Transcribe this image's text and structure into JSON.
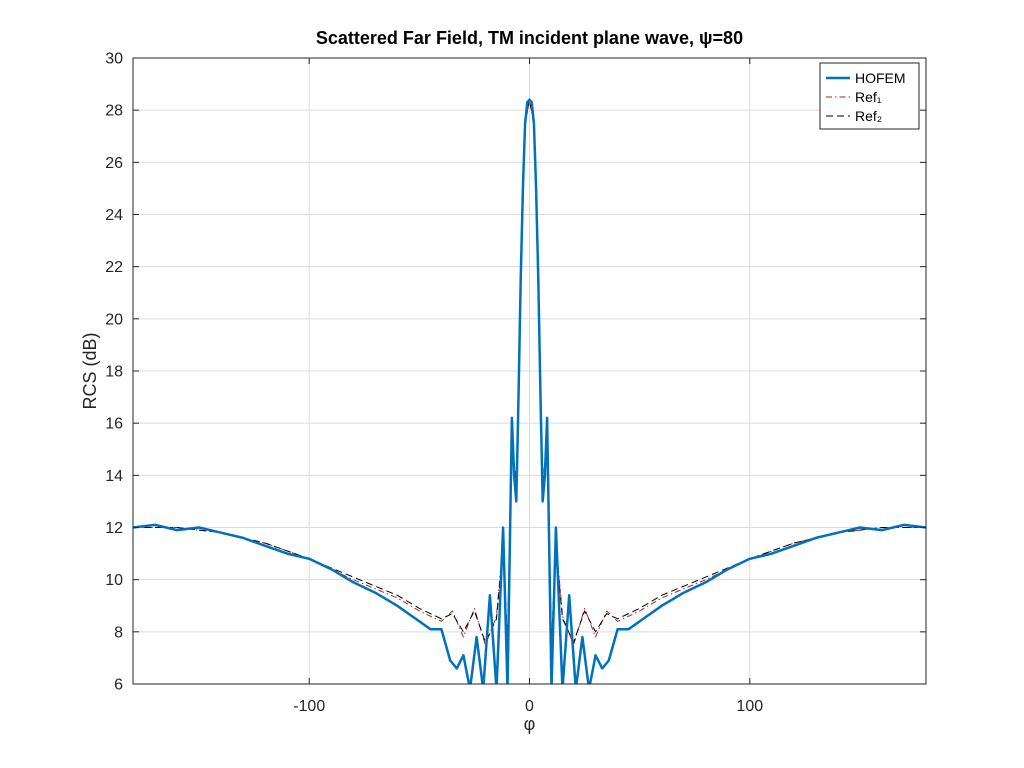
{
  "chart_data": {
    "type": "line",
    "title": "Scattered Far Field, TM incident plane wave, ψ=80",
    "xlabel": "φ",
    "ylabel": "RCS (dB)",
    "xlim": [
      -180,
      180
    ],
    "ylim": [
      6,
      30
    ],
    "xticks": [
      -100,
      0,
      100
    ],
    "yticks": [
      6,
      8,
      10,
      12,
      14,
      16,
      18,
      20,
      22,
      24,
      26,
      28,
      30
    ],
    "grid": true,
    "legend_position": "top-right",
    "series": [
      {
        "name": "HOFEM",
        "style": "solid",
        "color": "#0072bd",
        "x": [
          -180,
          -170,
          -160,
          -150,
          -140,
          -130,
          -120,
          -110,
          -100,
          -90,
          -80,
          -70,
          -60,
          -50,
          -45,
          -40,
          -36,
          -33,
          -30,
          -27,
          -24,
          -21,
          -18,
          -15,
          -12,
          -10,
          -8,
          -7,
          -6,
          -5,
          -4,
          -3,
          -2,
          -1,
          0,
          1,
          2,
          3,
          4,
          5,
          6,
          7,
          8,
          10,
          12,
          15,
          18,
          21,
          24,
          27,
          30,
          33,
          36,
          40,
          45,
          50,
          60,
          70,
          80,
          90,
          100,
          110,
          120,
          130,
          140,
          150,
          160,
          170,
          180
        ],
        "y": [
          12.0,
          12.1,
          11.9,
          12.0,
          11.8,
          11.6,
          11.3,
          11.0,
          10.8,
          10.4,
          9.9,
          9.5,
          9.0,
          8.4,
          8.1,
          8.1,
          6.9,
          6.6,
          7.1,
          5.8,
          7.8,
          5.8,
          9.4,
          5.8,
          12.0,
          5.8,
          16.2,
          14.0,
          13.0,
          17.0,
          21.5,
          25.0,
          27.5,
          28.3,
          28.4,
          28.3,
          27.5,
          25.0,
          21.5,
          17.0,
          13.0,
          14.0,
          16.2,
          5.8,
          12.0,
          5.8,
          9.4,
          5.8,
          7.8,
          5.8,
          7.1,
          6.6,
          6.9,
          8.1,
          8.1,
          8.4,
          9.0,
          9.5,
          9.9,
          10.4,
          10.8,
          11.0,
          11.3,
          11.6,
          11.8,
          12.0,
          11.9,
          12.1,
          12.0
        ]
      },
      {
        "name": "Ref₁",
        "style": "dash-dot",
        "color": "#b22222",
        "x": [
          -180,
          -160,
          -140,
          -120,
          -100,
          -80,
          -60,
          -50,
          -40,
          -35,
          -30,
          -25,
          -20,
          -15,
          -12,
          -10,
          -8,
          -6,
          -4,
          -2,
          0,
          2,
          4,
          6,
          8,
          10,
          12,
          15,
          20,
          25,
          30,
          35,
          40,
          50,
          60,
          80,
          100,
          120,
          140,
          160,
          180
        ],
        "y": [
          12.0,
          12.0,
          11.8,
          11.4,
          10.8,
          10.0,
          9.3,
          8.8,
          8.4,
          8.8,
          7.8,
          8.9,
          7.5,
          8.6,
          11.5,
          7.5,
          15.6,
          13.5,
          21.0,
          27.4,
          28.4,
          27.4,
          21.0,
          13.5,
          15.6,
          7.5,
          11.5,
          8.6,
          7.5,
          8.9,
          7.8,
          8.8,
          8.4,
          8.8,
          9.3,
          10.0,
          10.8,
          11.4,
          11.8,
          12.0,
          12.0
        ]
      },
      {
        "name": "Ref₂",
        "style": "dashed",
        "color": "#000000",
        "x": [
          -180,
          -160,
          -140,
          -120,
          -100,
          -80,
          -60,
          -50,
          -40,
          -35,
          -30,
          -25,
          -20,
          -15,
          -12,
          -10,
          -8,
          -6,
          -4,
          -2,
          0,
          2,
          4,
          6,
          8,
          10,
          12,
          15,
          20,
          25,
          30,
          35,
          40,
          50,
          60,
          80,
          100,
          120,
          140,
          160,
          180
        ],
        "y": [
          12.0,
          12.0,
          11.8,
          11.4,
          10.8,
          10.1,
          9.4,
          8.9,
          8.5,
          8.7,
          8.0,
          8.8,
          7.6,
          8.5,
          11.3,
          7.6,
          15.4,
          13.6,
          21.2,
          27.5,
          28.4,
          27.5,
          21.2,
          13.6,
          15.4,
          7.6,
          11.3,
          8.5,
          7.6,
          8.8,
          8.0,
          8.7,
          8.5,
          8.9,
          9.4,
          10.1,
          10.8,
          11.4,
          11.8,
          12.0,
          12.0
        ]
      }
    ]
  }
}
